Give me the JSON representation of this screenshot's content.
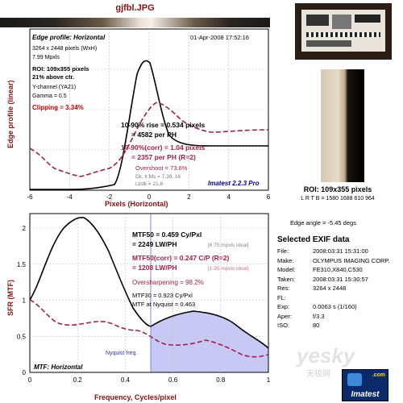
{
  "title": "gjfbl.JPG",
  "top_panel": {
    "heading": "Edge profile: Horizontal",
    "date": "01-Apr-2008 17:52:16",
    "size": "3264 x 2448 pixels (WxH)",
    "mpxls": "7.99 Mpxls",
    "roi1": "ROI: 109x355 pixels",
    "roi2": "21% above ctr.",
    "channel": "Y-channel (YA21)",
    "gamma": "Gamma = 0.5",
    "clipping": "Clipping = 3.34%",
    "rise1": "10-90% rise = 0.534 pixels",
    "rise2": "= 4582 per PH",
    "corr1": "10-90%(corr) = 1.04 pixels",
    "corr2": "= 2357 per PH (R=2)",
    "overshoot": "Overshoot = 73.6%",
    "dk": "Dk, lt Ms = 7.39, 16",
    "ltdk": "Lt/dk = 21.8",
    "version": "Imatest 2.2.3 Pro",
    "ylabel": "Edge profile (linear)",
    "xlabel": "Pixels (Horizontal)",
    "xticks": [
      "-6",
      "-4",
      "-2",
      "0",
      "2",
      "4",
      "6"
    ]
  },
  "bottom_panel": {
    "mtf50": "MTF50 = 0.459 Cy/Pxl",
    "mtf50b": "= 2249 LW/PH",
    "ideal1": "[6.75 mpxls ideal]",
    "corr1": "MTF50(corr) = 0.247 C/P (R=2)",
    "corr2": "= 1208 LW/PH",
    "ideal2": "[1.95 mpxls ideal]",
    "oversharp": "Oversharpening = 98.2%",
    "mtf30": "MTF30 = 0.923 Cy/Pxl",
    "nyq": "MTF at Nyquist = 0.463",
    "nyq_label": "Nyquist freq.",
    "heading": "MTF: Horizontal",
    "ylabel": "SFR (MTF)",
    "xlabel": "Frequency, Cycles/pixel",
    "xticks": [
      "0",
      "0.2",
      "0.4",
      "0.6",
      "0.8",
      "1"
    ],
    "yticks": [
      "0",
      "0.5",
      "1",
      "1.5",
      "2"
    ]
  },
  "side": {
    "roi": "ROI: 109x355 pixels",
    "lrtb": "L R T B = 1580 1688 610 964",
    "edge_angle": "Edge angle = -5.45 degs",
    "exif_title": "Selected EXIF data",
    "exif": [
      {
        "k": "File:",
        "v": "2008:03:31 15:31:00"
      },
      {
        "k": "Make:",
        "v": "OLYMPUS IMAGING CORP."
      },
      {
        "k": "Model:",
        "v": "FE310,X840,C530"
      },
      {
        "k": "Taken:",
        "v": "2008:03:31 15:30:57"
      },
      {
        "k": "Res:",
        "v": "3264 x 2448"
      },
      {
        "k": "FL:",
        "v": ""
      },
      {
        "k": "Exp:",
        "v": "0.0063 s (1/160)"
      },
      {
        "k": "Aper:",
        "v": "f/3.3"
      },
      {
        "k": "ISO:",
        "v": "80"
      }
    ],
    "watermark": "yesky",
    "watermark_cn": "天极网",
    "logo": "Imatest",
    "logo_domain": ".com"
  },
  "colors": {
    "black_curve": "#000000",
    "red_curve": "#a0204a",
    "nyquist_fill": "#c8c8f4"
  }
}
